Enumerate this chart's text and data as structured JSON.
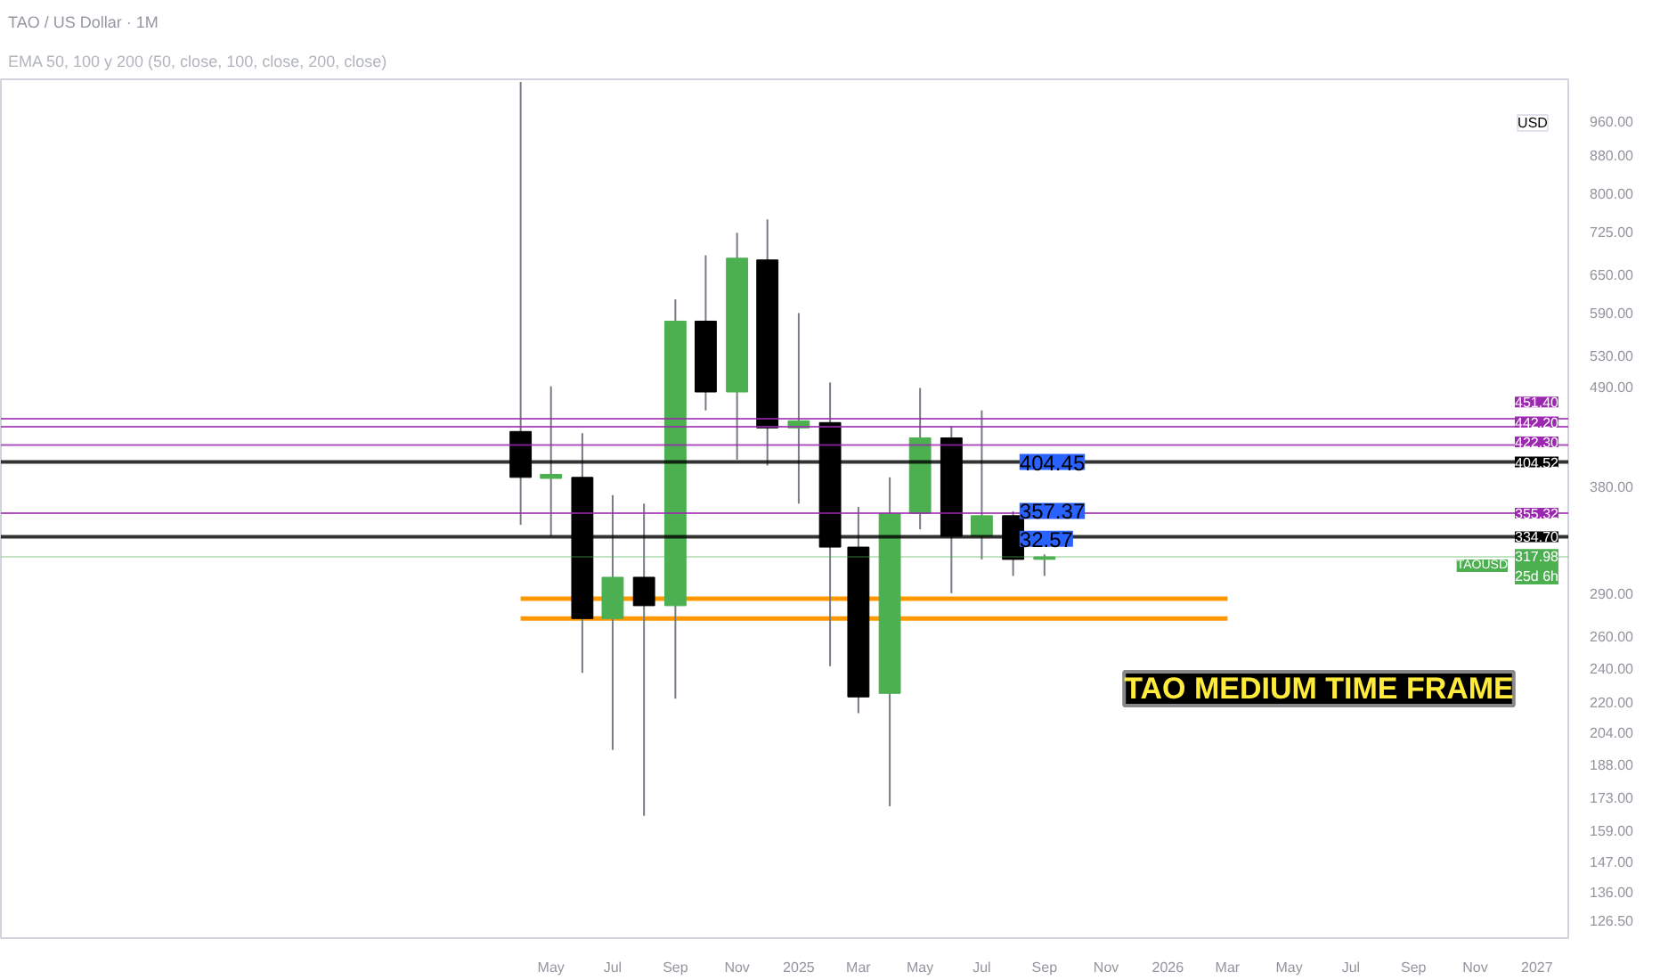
{
  "chart_data": {
    "type": "candlestick",
    "title": "TAO / US Dollar · 1M",
    "subtitle": "EMA 50, 100 y 200 (50, close, 100, close, 200, close)",
    "ylabel": "USD",
    "x": [
      "2024-04",
      "2024-05",
      "2024-06",
      "2024-07",
      "2024-08",
      "2024-09",
      "2024-10",
      "2024-11",
      "2024-12",
      "2025-01",
      "2025-02",
      "2025-03",
      "2025-04",
      "2025-05",
      "2025-06",
      "2025-07",
      "2025-08",
      "2025-09"
    ],
    "ohlc": [
      [
        437,
        1060,
        345,
        389
      ],
      [
        388,
        490,
        335,
        392
      ],
      [
        389,
        435,
        237,
        272
      ],
      [
        272,
        372,
        195,
        302
      ],
      [
        302,
        364,
        165,
        281
      ],
      [
        281,
        611,
        222,
        578
      ],
      [
        578,
        683,
        461,
        483
      ],
      [
        483,
        723,
        407,
        678
      ],
      [
        675,
        748,
        401,
        441
      ],
      [
        441,
        590,
        364,
        449
      ],
      [
        447,
        495,
        241,
        326
      ],
      [
        326,
        361,
        214,
        223
      ],
      [
        225,
        389,
        169,
        355
      ],
      [
        355,
        488,
        341,
        430
      ],
      [
        430,
        443,
        290,
        335
      ],
      [
        335,
        461,
        316,
        353
      ],
      [
        353,
        357,
        303,
        316
      ],
      [
        316,
        320,
        303,
        318
      ]
    ],
    "colors": [
      "#000000",
      "#4caf50",
      "#000000",
      "#4caf50",
      "#000000",
      "#4caf50",
      "#000000",
      "#4caf50",
      "#000000",
      "#4caf50",
      "#000000",
      "#000000",
      "#4caf50",
      "#4caf50",
      "#000000",
      "#4caf50",
      "#000000",
      "#4caf50"
    ],
    "series": [
      {
        "type": "line",
        "color": "#ff9800",
        "x": [
          "2024-04",
          "2026-03"
        ],
        "values": [
          286,
          286
        ]
      },
      {
        "type": "line",
        "color": "#ff9800",
        "x": [
          "2024-04",
          "2026-03"
        ],
        "values": [
          272,
          272
        ]
      }
    ],
    "log": true,
    "xlim": [
      "2022-11-04",
      "2027-02-01"
    ],
    "ylim": [
      121,
      1067
    ],
    "xticks": [
      {
        "value": "2024-05",
        "label": "May"
      },
      {
        "value": "2024-07",
        "label": "Jul"
      },
      {
        "value": "2024-09",
        "label": "Sep"
      },
      {
        "value": "2024-11",
        "label": "Nov"
      },
      {
        "value": "2025-01",
        "label": "2025"
      },
      {
        "value": "2025-03",
        "label": "Mar"
      },
      {
        "value": "2025-05",
        "label": "May"
      },
      {
        "value": "2025-07",
        "label": "Jul"
      },
      {
        "value": "2025-09",
        "label": "Sep"
      },
      {
        "value": "2025-11",
        "label": "Nov"
      },
      {
        "value": "2026-01",
        "label": "2026"
      },
      {
        "value": "2026-03",
        "label": "Mar"
      },
      {
        "value": "2026-05",
        "label": "May"
      },
      {
        "value": "2026-07",
        "label": "Jul"
      },
      {
        "value": "2026-09",
        "label": "Sep"
      },
      {
        "value": "2026-11",
        "label": "Nov"
      },
      {
        "value": "2027-01",
        "label": "2027"
      }
    ],
    "yticks": [
      {
        "value": 960,
        "label": "960.00"
      },
      {
        "value": 880,
        "label": "880.00"
      },
      {
        "value": 800,
        "label": "800.00"
      },
      {
        "value": 725,
        "label": "725.00"
      },
      {
        "value": 650,
        "label": "650.00"
      },
      {
        "value": 590,
        "label": "590.00"
      },
      {
        "value": 530,
        "label": "530.00"
      },
      {
        "value": 490,
        "label": "490.00"
      },
      {
        "value": 380,
        "label": "380.00"
      },
      {
        "value": 290,
        "label": "290.00"
      },
      {
        "value": 260,
        "label": "260.00"
      },
      {
        "value": 240,
        "label": "240.00"
      },
      {
        "value": 220,
        "label": "220.00"
      },
      {
        "value": 204,
        "label": "204.00"
      },
      {
        "value": 188,
        "label": "188.00"
      },
      {
        "value": 173,
        "label": "173.00"
      },
      {
        "value": 159,
        "label": "159.00"
      },
      {
        "value": 147,
        "label": "147.00"
      },
      {
        "value": 136,
        "label": "136.00"
      },
      {
        "value": 126.5,
        "label": "126.50"
      }
    ],
    "ref_lines": [
      {
        "axis": "y",
        "value": 451.4,
        "label": "451.40",
        "color": "#9c27b0"
      },
      {
        "axis": "y",
        "value": 442.2,
        "label": "442.20",
        "color": "#9c27b0"
      },
      {
        "axis": "y",
        "value": 422.3,
        "label": "422.30",
        "color": "#9c27b0"
      },
      {
        "axis": "y",
        "value": 404.52,
        "label": "404.52",
        "color": "#000000"
      },
      {
        "axis": "y",
        "value": 355.32,
        "label": "355.32",
        "color": "#9c27b0"
      },
      {
        "axis": "y",
        "value": 334.7,
        "label": "334.70",
        "color": "#000000"
      },
      {
        "axis": "y",
        "value": 317.98,
        "label": "317.98\n25d 6h",
        "color": "#4caf50"
      }
    ],
    "annotations": [
      "TAO MEDIUM TIME FRAME",
      {
        "text": "TAOUSD",
        "y": 317.98
      },
      {
        "text": "404.45",
        "x": "2025-09",
        "y": 404.45
      },
      {
        "text": "357.37",
        "x": "2025-09",
        "y": 357.37
      },
      {
        "text": "32.57",
        "x": "2025-09",
        "y": 333
      }
    ]
  }
}
